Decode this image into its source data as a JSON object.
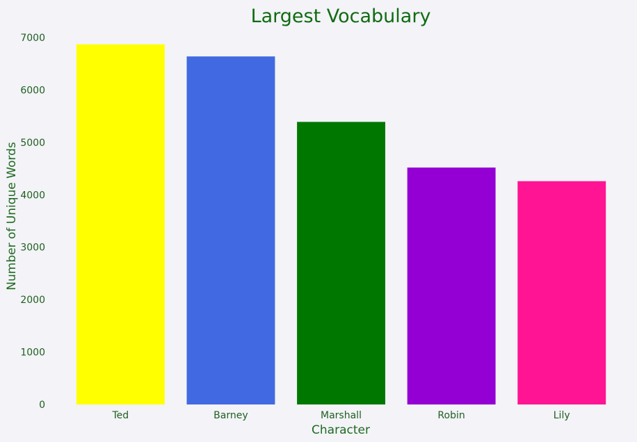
{
  "chart_data": {
    "type": "bar",
    "title": "Largest Vocabulary",
    "xlabel": "Character",
    "ylabel": "Number of Unique Words",
    "categories": [
      "Ted",
      "Barney",
      "Marshall",
      "Robin",
      "Lily"
    ],
    "values": [
      6870,
      6640,
      5390,
      4520,
      4260
    ],
    "colors": [
      "#ffff00",
      "#4169e1",
      "#007800",
      "#9400d3",
      "#ff1493"
    ],
    "ylim": [
      0,
      7000
    ],
    "yticks": [
      0,
      1000,
      2000,
      3000,
      4000,
      5000,
      6000,
      7000
    ],
    "grid": false,
    "legend": "none"
  },
  "colors": {
    "background": "#f3f3f8",
    "text": "#1f6a1f",
    "title": "#116b11"
  }
}
